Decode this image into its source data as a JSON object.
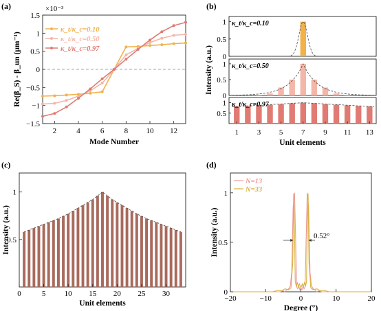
{
  "panels": {
    "a": "(a)",
    "b": "(b)",
    "c": "(c)",
    "d": "(d)"
  },
  "colors": {
    "k010": "#f2b24a",
    "k050": "#f4b6a8",
    "k097": "#df7a72",
    "bar_b1": "#f2b24a",
    "bar_b2": "#f4b6a8",
    "bar_b3": "#e07b73",
    "bar_c": "#a86a5c",
    "n13": "#f09a9a",
    "n33": "#d8b23a"
  },
  "chart_data": [
    {
      "panel": "a",
      "type": "line",
      "xlabel": "Mode Number",
      "ylabel": "Re(β_S) - β_un (μm⁻¹)",
      "exponent_label": "×10⁻³",
      "xlim": [
        1,
        13
      ],
      "ylim": [
        -1.5,
        1.5
      ],
      "xticks": [
        2,
        4,
        6,
        8,
        10,
        12
      ],
      "yticks": [
        -1.5,
        -1,
        -0.5,
        0,
        0.5,
        1,
        1.5
      ],
      "zero_line": true,
      "legend_position": "top-left",
      "x": [
        1,
        2,
        3,
        4,
        5,
        6,
        7,
        8,
        9,
        10,
        11,
        12,
        13
      ],
      "series": [
        {
          "name": "κ_t/κ_c=0.10",
          "values": [
            -0.74,
            -0.73,
            -0.71,
            -0.69,
            -0.66,
            -0.62,
            0,
            0.62,
            0.63,
            0.66,
            0.68,
            0.71,
            0.73
          ]
        },
        {
          "name": "κ_t/κ_c=0.50",
          "values": [
            -0.96,
            -0.94,
            -0.86,
            -0.74,
            -0.59,
            -0.38,
            0,
            0.4,
            0.58,
            0.74,
            0.86,
            0.94,
            0.97
          ]
        },
        {
          "name": "κ_t/κ_c=0.97",
          "values": [
            -1.3,
            -1.22,
            -1.04,
            -0.8,
            -0.54,
            -0.26,
            0,
            0.28,
            0.55,
            0.81,
            1.04,
            1.21,
            1.3
          ]
        }
      ]
    },
    {
      "panel": "b",
      "type": "bar",
      "xlabel": "Unit elements",
      "ylabel": "Intensity (a.u.)",
      "xticks": [
        1,
        3,
        5,
        7,
        9,
        11,
        13
      ],
      "yticks": [
        0,
        0.5,
        1
      ],
      "categories": [
        1,
        2,
        3,
        4,
        5,
        6,
        7,
        8,
        9,
        10,
        11,
        12,
        13
      ],
      "subplots": [
        {
          "annotation": "κ_t/κ_c=0.10",
          "values": [
            0,
            0,
            0,
            0,
            0,
            0.002,
            1,
            0.002,
            0,
            0,
            0,
            0,
            0
          ]
        },
        {
          "annotation": "κ_t/κ_c=0.50",
          "values": [
            0,
            0.004,
            0.016,
            0.062,
            0.25,
            0.5,
            1,
            0.5,
            0.25,
            0.062,
            0.016,
            0.004,
            0
          ]
        },
        {
          "annotation": "κ_t/κ_c=0.97",
          "values": [
            0.82,
            0.84,
            0.87,
            0.9,
            0.93,
            0.97,
            1,
            0.97,
            0.93,
            0.9,
            0.87,
            0.84,
            0.82
          ]
        }
      ]
    },
    {
      "panel": "c",
      "type": "bar",
      "xlabel": "Unit elements",
      "ylabel": "Intensity (a.u.)",
      "xlim": [
        0,
        34
      ],
      "ylim": [
        0,
        1.2
      ],
      "xticks": [
        0,
        5,
        10,
        15,
        20,
        25,
        30
      ],
      "yticks": [
        0.5,
        1
      ],
      "categories": [
        1,
        2,
        3,
        4,
        5,
        6,
        7,
        8,
        9,
        10,
        11,
        12,
        13,
        14,
        15,
        16,
        17,
        18,
        19,
        20,
        21,
        22,
        23,
        24,
        25,
        26,
        27,
        28,
        29,
        30,
        31,
        32,
        33
      ],
      "values": [
        0.58,
        0.6,
        0.62,
        0.64,
        0.66,
        0.68,
        0.7,
        0.72,
        0.745,
        0.77,
        0.8,
        0.83,
        0.86,
        0.89,
        0.92,
        0.96,
        1.0,
        0.96,
        0.92,
        0.89,
        0.86,
        0.83,
        0.8,
        0.77,
        0.745,
        0.72,
        0.7,
        0.68,
        0.66,
        0.64,
        0.62,
        0.6,
        0.58
      ]
    },
    {
      "panel": "d",
      "type": "line",
      "xlabel": "Degree (°)",
      "ylabel": "Intensity (a.u.)",
      "xlim": [
        -20,
        20
      ],
      "ylim": [
        0,
        1.2
      ],
      "xticks": [
        -20,
        -10,
        0,
        10,
        20
      ],
      "yticks": [
        0,
        0.5,
        1
      ],
      "legend_position": "top-left",
      "annotation": "0.52°",
      "series": [
        {
          "name": "N=13",
          "x": [
            -20,
            -6,
            -5,
            -4.5,
            -4,
            -3.5,
            -3,
            -2.6,
            -2.2,
            -1.8,
            -1.5,
            -1.2,
            -0.9,
            -0.6,
            -0.3,
            0,
            0.3,
            0.6,
            0.9,
            1.2,
            1.5,
            1.8,
            2.2,
            2.6,
            3,
            3.5,
            4,
            4.5,
            5,
            6,
            20
          ],
          "values": [
            0,
            0,
            0.01,
            0,
            0.02,
            0.03,
            0.06,
            0.2,
            0.85,
            1.0,
            0.55,
            0.05,
            0.03,
            0.06,
            0.02,
            0.04,
            0.02,
            0.06,
            0.03,
            0.05,
            0.55,
            1.0,
            0.85,
            0.2,
            0.06,
            0.03,
            0.02,
            0,
            0.01,
            0,
            0
          ]
        },
        {
          "name": "N=33",
          "x": [
            -20,
            -8,
            -6.5,
            -5.5,
            -4.5,
            -3.5,
            -2.8,
            -2.3,
            -2.05,
            -1.8,
            -1.6,
            -1.3,
            -1,
            -0.7,
            -0.4,
            0,
            0.4,
            0.7,
            1,
            1.3,
            1.6,
            1.8,
            2.05,
            2.3,
            2.8,
            3.5,
            4.5,
            5.5,
            6.5,
            8,
            20
          ],
          "values": [
            0,
            0,
            0.015,
            0.01,
            0.03,
            0.02,
            0.04,
            0.3,
            0.99,
            0.6,
            0.1,
            0.06,
            0.09,
            0.05,
            0.08,
            0.04,
            0.08,
            0.05,
            0.09,
            0.06,
            0.1,
            0.6,
            0.99,
            0.3,
            0.04,
            0.02,
            0.03,
            0.01,
            0.015,
            0,
            0
          ]
        }
      ]
    }
  ]
}
